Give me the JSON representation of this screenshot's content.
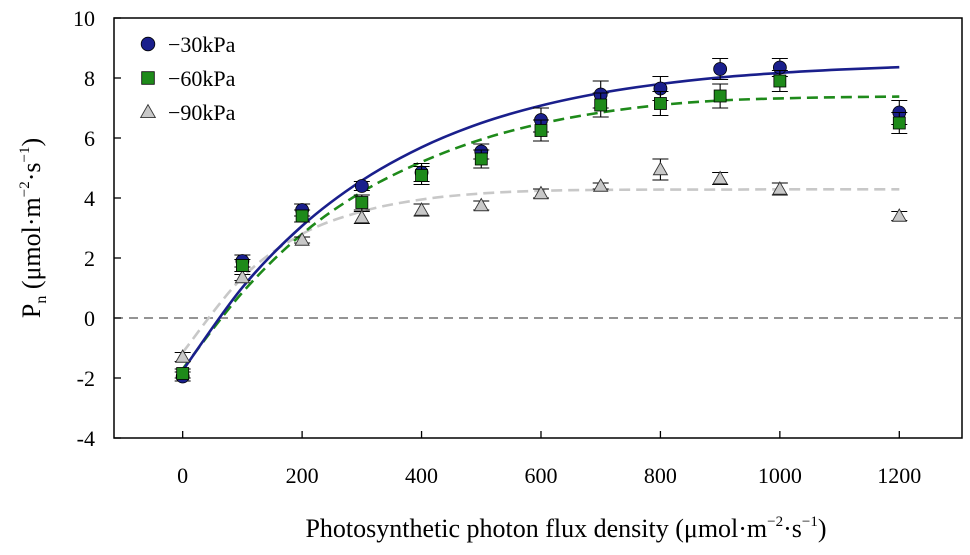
{
  "chart_data": {
    "type": "scatter",
    "xlabel": "Photosynthetic photon flux density (μmol·m",
    "xlabel_sup1": "−2",
    "xlabel_mid": "·s",
    "xlabel_sup2": "−1",
    "xlabel_end": ")",
    "ylabel_p": "P",
    "ylabel_sub": "n",
    "ylabel_rest": " (μmol·m",
    "ylabel_sup1": "−2",
    "ylabel_mid": "·s",
    "ylabel_sup2": "−1",
    "ylabel_end": ")",
    "xlim": [
      -115,
      1305
    ],
    "ylim": [
      -4,
      10
    ],
    "xticks": [
      0,
      200,
      400,
      600,
      800,
      1000,
      1200
    ],
    "yticks": [
      -4,
      -2,
      0,
      2,
      4,
      6,
      8,
      10
    ],
    "xtick_labels": [
      "0",
      "200",
      "400",
      "600",
      "800",
      "1000",
      "1200"
    ],
    "ytick_labels": [
      "-4",
      "-2",
      "0",
      "2",
      "4",
      "6",
      "8",
      "10"
    ],
    "zero_line": 0,
    "legend_position": "top-left",
    "series": [
      {
        "name": "−30kPa",
        "marker": "circle",
        "color": "#1a1f8c",
        "line_color": "#1a1f8c",
        "line_style": "solid",
        "x": [
          0,
          100,
          200,
          300,
          400,
          500,
          600,
          700,
          800,
          900,
          1000,
          1200
        ],
        "y": [
          -1.95,
          1.9,
          3.6,
          4.4,
          4.85,
          5.55,
          6.6,
          7.45,
          7.65,
          8.3,
          8.35,
          6.85
        ],
        "err": [
          0.15,
          0.2,
          0.2,
          0.15,
          0.3,
          0.25,
          0.4,
          0.45,
          0.4,
          0.35,
          0.3,
          0.4
        ],
        "fit_x": [
          0,
          100,
          200,
          300,
          400,
          500,
          600,
          700,
          800,
          900,
          1000,
          1100,
          1200
        ],
        "fit_y": [
          -1.75,
          1.02,
          3.07,
          4.58,
          5.69,
          6.5,
          7.08,
          7.5,
          7.8,
          8.02,
          8.17,
          8.28,
          8.36
        ]
      },
      {
        "name": "−60kPa",
        "marker": "square",
        "color": "#1e8a1a",
        "line_color": "#1e8a1a",
        "line_style": "dashed",
        "x": [
          0,
          100,
          200,
          300,
          400,
          500,
          600,
          700,
          800,
          900,
          1000,
          1200
        ],
        "y": [
          -1.85,
          1.75,
          3.4,
          3.85,
          4.75,
          5.3,
          6.25,
          7.1,
          7.15,
          7.4,
          7.9,
          6.5
        ],
        "err": [
          0.15,
          0.2,
          0.2,
          0.25,
          0.3,
          0.3,
          0.35,
          0.4,
          0.4,
          0.4,
          0.35,
          0.35
        ],
        "fit_x": [
          0,
          100,
          200,
          300,
          400,
          500,
          600,
          700,
          800,
          900,
          1000,
          1100,
          1200
        ],
        "fit_y": [
          -1.7,
          0.85,
          2.8,
          4.2,
          5.2,
          5.95,
          6.48,
          6.85,
          7.1,
          7.25,
          7.32,
          7.36,
          7.38
        ]
      },
      {
        "name": "−90kPa",
        "marker": "triangle",
        "color": "#c8c8c8",
        "line_color": "#c8c8c8",
        "line_style": "dashed",
        "x": [
          0,
          100,
          200,
          300,
          400,
          500,
          600,
          700,
          800,
          900,
          1000,
          1200
        ],
        "y": [
          -1.3,
          1.35,
          2.6,
          3.35,
          3.6,
          3.75,
          4.15,
          4.4,
          4.95,
          4.65,
          4.3,
          3.4
        ],
        "err": [
          0.15,
          0.1,
          0.1,
          0.2,
          0.2,
          0.15,
          0.15,
          0.1,
          0.35,
          0.2,
          0.2,
          0.15
        ],
        "fit_x": [
          0,
          100,
          200,
          300,
          400,
          500,
          600,
          700,
          800,
          900,
          1000,
          1100,
          1200
        ],
        "fit_y": [
          -1.15,
          1.35,
          2.8,
          3.55,
          3.95,
          4.15,
          4.24,
          4.27,
          4.28,
          4.28,
          4.29,
          4.29,
          4.29
        ]
      }
    ]
  }
}
